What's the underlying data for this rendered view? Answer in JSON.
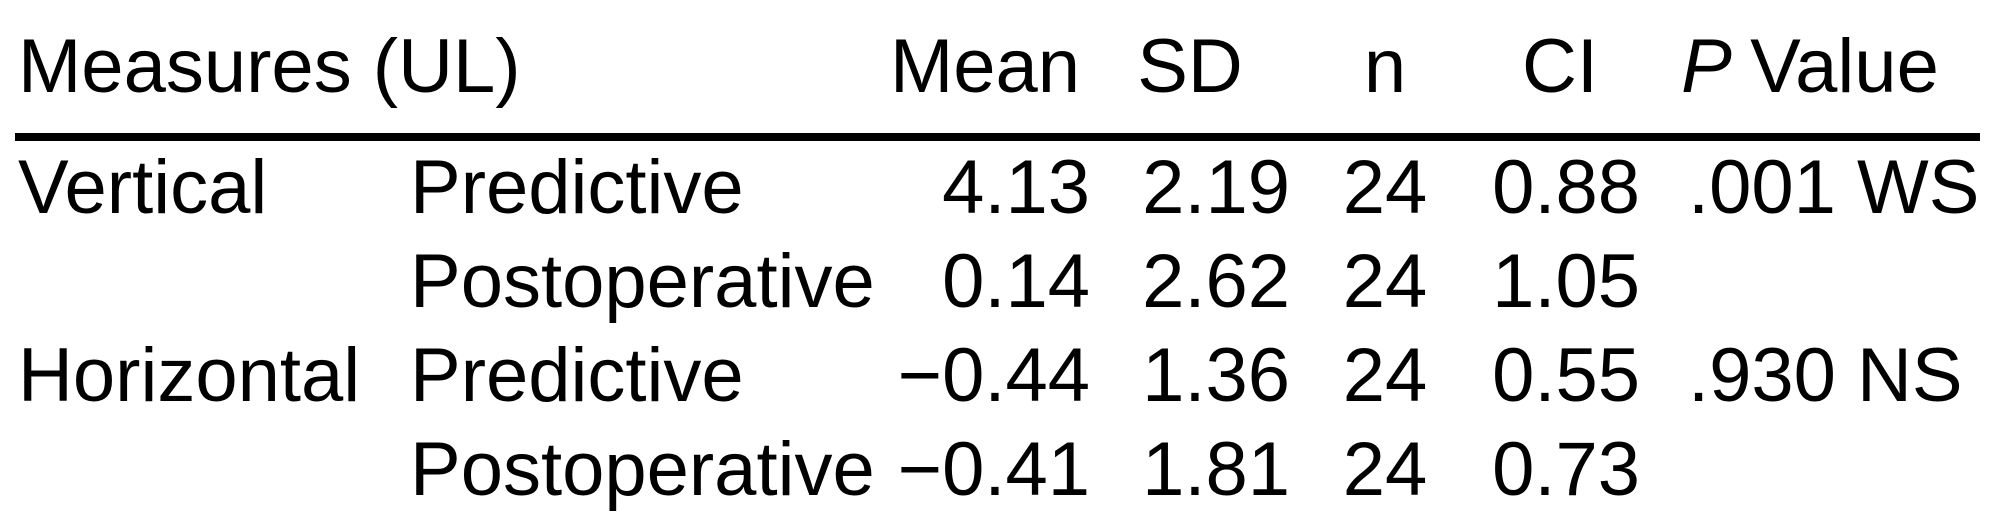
{
  "table": {
    "colors": {
      "text": "#000000",
      "background": "#ffffff",
      "rule": "#000000"
    },
    "header": {
      "measure": "Measures (UL)",
      "mean": "Mean",
      "sd": "SD",
      "n": "n",
      "ci": "CI",
      "p_italic": "P",
      "p_word": "Value"
    },
    "rows": [
      {
        "measure": "Vertical",
        "phase": "Predictive",
        "mean": "4.13",
        "sd": "2.19",
        "n": "24",
        "ci": "0.88",
        "p": ".001 WS"
      },
      {
        "measure": "",
        "phase": "Postoperative",
        "mean": "0.14",
        "sd": "2.62",
        "n": "24",
        "ci": "1.05",
        "p": ""
      },
      {
        "measure": "Horizontal",
        "phase": "Predictive",
        "mean": "−0.44",
        "sd": "1.36",
        "n": "24",
        "ci": "0.55",
        "p": ".930 NS"
      },
      {
        "measure": "",
        "phase": "Postoperative",
        "mean": "−0.41",
        "sd": "1.81",
        "n": "24",
        "ci": "0.73",
        "p": ""
      }
    ]
  }
}
